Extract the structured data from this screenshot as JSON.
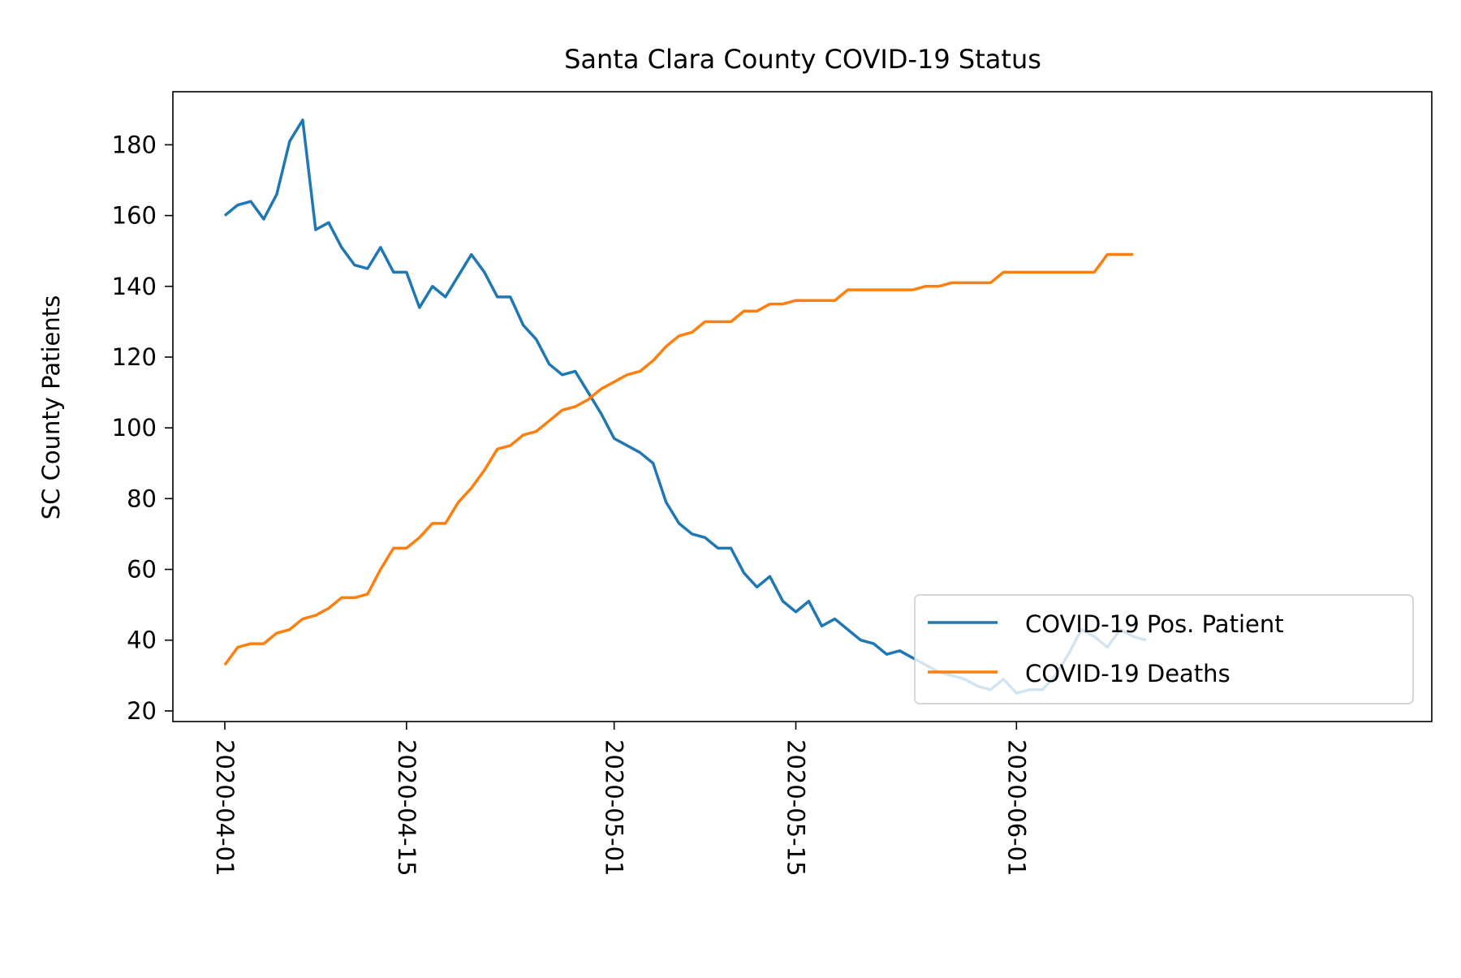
{
  "chart_data": {
    "type": "line",
    "title": "Santa Clara County COVID-19 Status",
    "xlabel": "",
    "ylabel": "SC County Patients",
    "x_start": "2020-04-01",
    "x_ticks": [
      "2020-04-01",
      "2020-04-15",
      "2020-05-01",
      "2020-05-15",
      "2020-06-01"
    ],
    "y_ticks": [
      20,
      40,
      60,
      80,
      100,
      120,
      140,
      160,
      180
    ],
    "ylim": [
      17,
      195
    ],
    "xlim": [
      "2020-03-28",
      "2020-07-03"
    ],
    "grid": false,
    "legend": "lower-right",
    "series": [
      {
        "name": "COVID-19 Pos. Patient",
        "color": "#1f77b4",
        "values": [
          160,
          163,
          164,
          159,
          166,
          181,
          187,
          156,
          158,
          151,
          146,
          145,
          151,
          144,
          144,
          134,
          140,
          137,
          143,
          149,
          144,
          137,
          137,
          129,
          125,
          118,
          115,
          116,
          110,
          104,
          97,
          95,
          93,
          90,
          79,
          73,
          70,
          69,
          66,
          66,
          59,
          55,
          58,
          51,
          48,
          51,
          44,
          46,
          43,
          40,
          39,
          36,
          37,
          35,
          33,
          31,
          30,
          29,
          27,
          26,
          29,
          25,
          26,
          26,
          30,
          36,
          43,
          41,
          38,
          43,
          41,
          40
        ]
      },
      {
        "name": "COVID-19 Deaths",
        "color": "#ff7f0e",
        "values": [
          33,
          38,
          39,
          39,
          42,
          43,
          46,
          47,
          49,
          52,
          52,
          53,
          60,
          66,
          66,
          69,
          73,
          73,
          79,
          83,
          88,
          94,
          95,
          98,
          99,
          102,
          105,
          106,
          108,
          111,
          113,
          115,
          116,
          119,
          123,
          126,
          127,
          130,
          130,
          130,
          133,
          133,
          135,
          135,
          136,
          136,
          136,
          136,
          139,
          139,
          139,
          139,
          139,
          139,
          140,
          140,
          141,
          141,
          141,
          141,
          144,
          144,
          144,
          144,
          144,
          144,
          144,
          144,
          149,
          149,
          149
        ]
      }
    ]
  }
}
